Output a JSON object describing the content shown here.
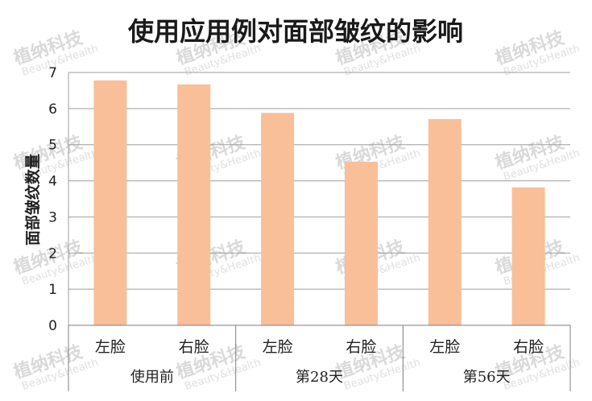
{
  "chart_data": {
    "type": "bar",
    "title": "使用应用例对面部皱纹的影响",
    "ylabel": "面部皱纹数量",
    "xlabel": "",
    "ylim": [
      0,
      7
    ],
    "yticks": [
      0,
      1,
      2,
      3,
      4,
      5,
      6,
      7
    ],
    "grid": true,
    "categories": [
      "左脸",
      "右脸",
      "左脸",
      "右脸",
      "左脸",
      "右脸"
    ],
    "groups": [
      "使用前",
      "第28天",
      "第56天"
    ],
    "values": [
      6.78,
      6.67,
      5.88,
      4.53,
      5.71,
      3.82
    ],
    "bar_color": "#f8bf99"
  },
  "watermark": {
    "text": "植纳科技",
    "subtext": "Beauty&Health"
  }
}
